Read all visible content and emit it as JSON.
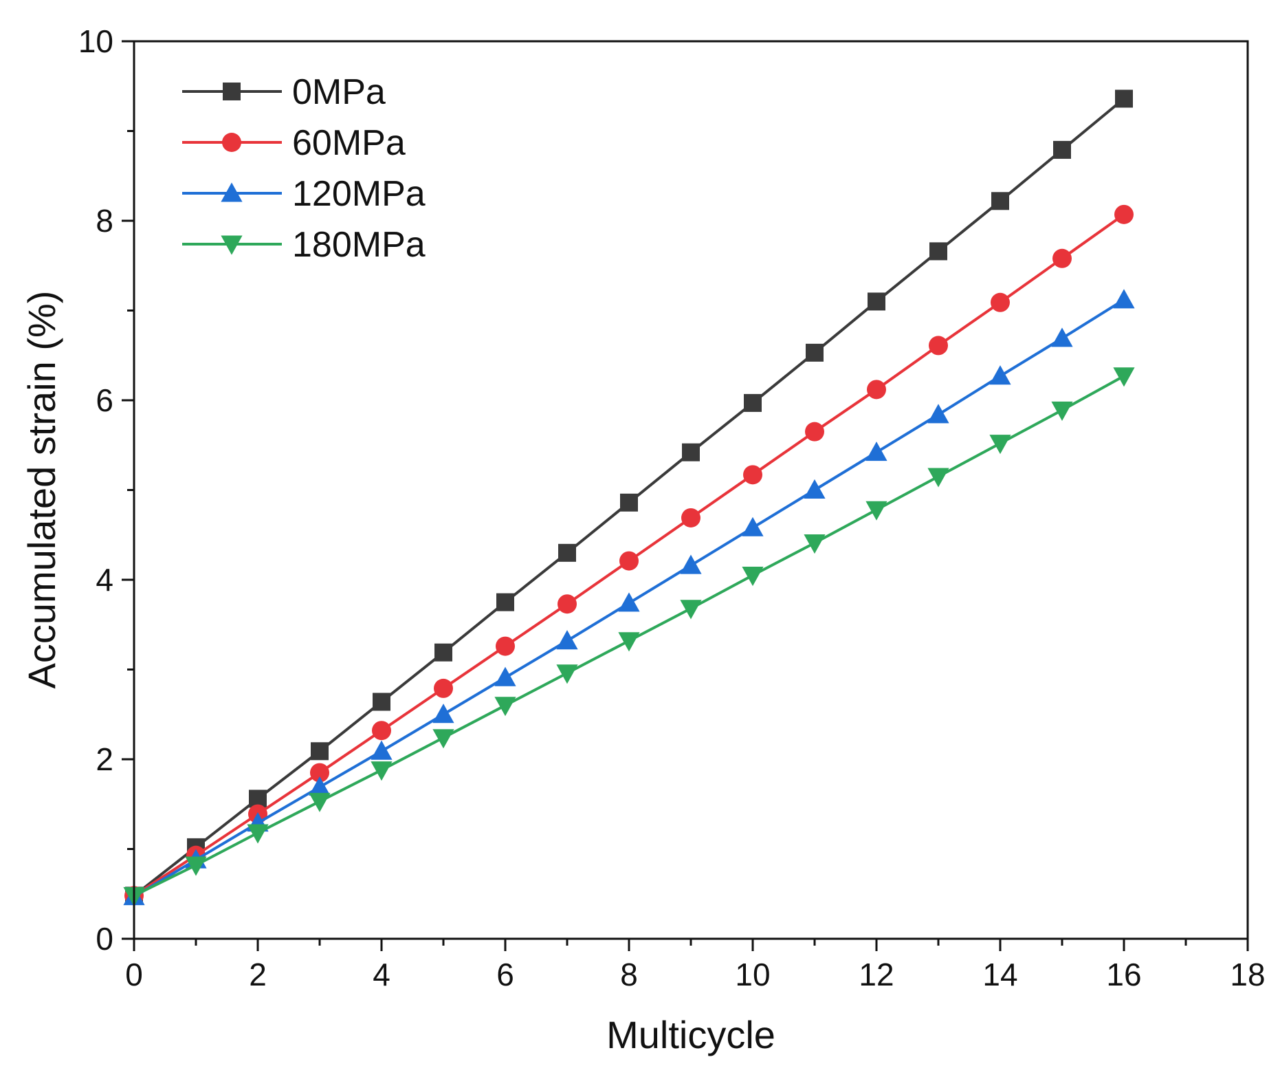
{
  "chart_data": {
    "type": "line",
    "title": "",
    "xlabel": "Multicycle",
    "ylabel": "Accumulated strain (%)",
    "xlim": [
      0,
      18
    ],
    "ylim": [
      0,
      10
    ],
    "xticks": [
      0,
      2,
      4,
      6,
      8,
      10,
      12,
      14,
      16,
      18
    ],
    "xtick_labels": [
      "0",
      "2",
      "4",
      "6",
      "8",
      "10",
      "12",
      "14",
      "16",
      "18"
    ],
    "yticks": [
      0,
      2,
      4,
      6,
      8,
      10
    ],
    "ytick_labels": [
      "0",
      "2",
      "4",
      "6",
      "8",
      "10"
    ],
    "grid": false,
    "legend_position": "top-left",
    "x": [
      0,
      1,
      2,
      3,
      4,
      5,
      6,
      7,
      8,
      9,
      10,
      11,
      12,
      13,
      14,
      15,
      16
    ],
    "series": [
      {
        "name": "0MPa",
        "color": "#3a3a3a",
        "marker": "square",
        "values": [
          0.48,
          1.02,
          1.56,
          2.09,
          2.64,
          3.19,
          3.75,
          4.3,
          4.86,
          5.42,
          5.97,
          6.53,
          7.1,
          7.66,
          8.22,
          8.79,
          9.36
        ]
      },
      {
        "name": "60MPa",
        "color": "#e8343a",
        "marker": "circle",
        "values": [
          0.48,
          0.93,
          1.39,
          1.85,
          2.32,
          2.79,
          3.26,
          3.73,
          4.21,
          4.69,
          5.17,
          5.65,
          6.12,
          6.61,
          7.09,
          7.58,
          8.07
        ]
      },
      {
        "name": "120MPa",
        "color": "#1f6fd6",
        "marker": "triangle-up",
        "values": [
          0.47,
          0.88,
          1.29,
          1.69,
          2.09,
          2.5,
          2.91,
          3.32,
          3.74,
          4.16,
          4.58,
          5.0,
          5.42,
          5.84,
          6.27,
          6.69,
          7.12
        ]
      },
      {
        "name": "180MPa",
        "color": "#2ea85a",
        "marker": "triangle-down",
        "values": [
          0.48,
          0.82,
          1.18,
          1.53,
          1.88,
          2.24,
          2.6,
          2.96,
          3.32,
          3.68,
          4.05,
          4.41,
          4.78,
          5.15,
          5.52,
          5.89,
          6.27
        ]
      }
    ]
  }
}
